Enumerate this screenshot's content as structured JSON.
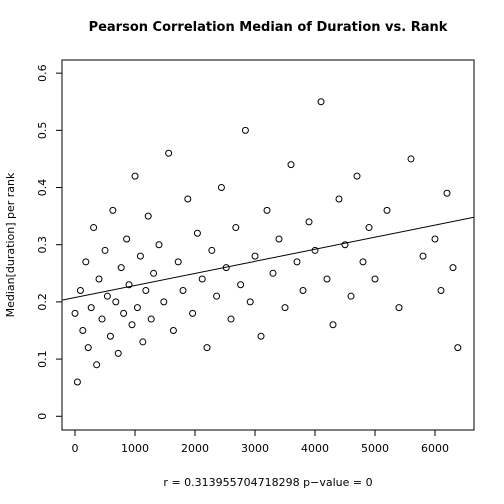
{
  "chart_data": {
    "type": "scatter",
    "title": "Pearson Correlation Median of Duration vs. Rank",
    "y_label": "Median[duration] per rank",
    "x_label": "r =  0.313955704718298  p−value =  0",
    "x": [
      0,
      40,
      90,
      130,
      180,
      220,
      270,
      310,
      360,
      400,
      450,
      500,
      540,
      590,
      630,
      680,
      720,
      770,
      810,
      860,
      900,
      950,
      1000,
      1040,
      1090,
      1130,
      1180,
      1220,
      1270,
      1310,
      1400,
      1480,
      1560,
      1640,
      1720,
      1800,
      1880,
      1960,
      2040,
      2120,
      2200,
      2280,
      2360,
      2440,
      2520,
      2600,
      2680,
      2760,
      2840,
      2920,
      3000,
      3100,
      3200,
      3300,
      3400,
      3500,
      3600,
      3700,
      3800,
      3900,
      4000,
      4100,
      4200,
      4300,
      4400,
      4500,
      4600,
      4700,
      4800,
      4900,
      5000,
      5200,
      5400,
      5600,
      5800,
      6000,
      6100,
      6200,
      6300,
      6380
    ],
    "values": [
      0.18,
      0.06,
      0.22,
      0.15,
      0.27,
      0.12,
      0.19,
      0.33,
      0.09,
      0.24,
      0.17,
      0.29,
      0.21,
      0.14,
      0.36,
      0.2,
      0.11,
      0.26,
      0.18,
      0.31,
      0.23,
      0.16,
      0.42,
      0.19,
      0.28,
      0.13,
      0.22,
      0.35,
      0.17,
      0.25,
      0.3,
      0.2,
      0.46,
      0.15,
      0.27,
      0.22,
      0.38,
      0.18,
      0.32,
      0.24,
      0.12,
      0.29,
      0.21,
      0.4,
      0.26,
      0.17,
      0.33,
      0.23,
      0.5,
      0.2,
      0.28,
      0.14,
      0.36,
      0.25,
      0.31,
      0.19,
      0.44,
      0.27,
      0.22,
      0.34,
      0.29,
      0.55,
      0.24,
      0.16,
      0.38,
      0.3,
      0.21,
      0.42,
      0.27,
      0.33,
      0.24,
      0.36,
      0.19,
      0.45,
      0.28,
      0.31,
      0.22,
      0.39,
      0.26,
      0.12
    ],
    "color": "#000000",
    "fit_line": {
      "x": [
        -217,
        6650
      ],
      "y": [
        0.203,
        0.348
      ]
    },
    "xlim": [
      -217,
      6650
    ],
    "ylim": [
      -0.024,
      0.623
    ],
    "xticks": [
      0,
      1000,
      2000,
      3000,
      4000,
      5000,
      6000
    ],
    "yticks": [
      0.0,
      0.1,
      0.2,
      0.3,
      0.4,
      0.5,
      0.6
    ]
  }
}
